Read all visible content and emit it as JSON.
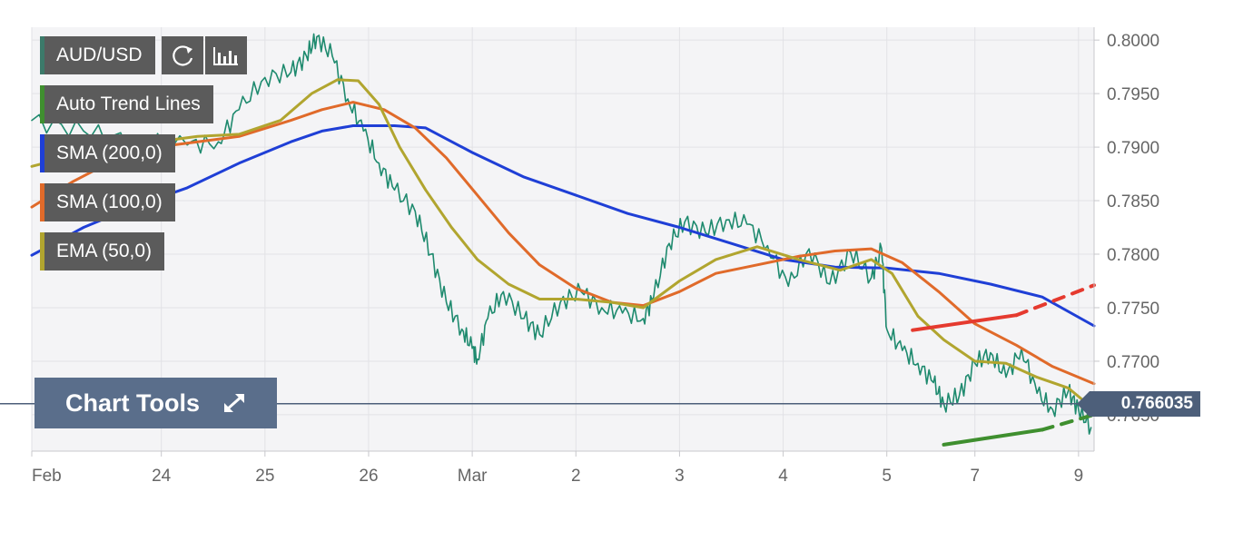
{
  "symbol": "AUD/USD",
  "legend": {
    "trend": {
      "label": "Auto Trend Lines",
      "color": "#3f8f2f"
    },
    "sma200": {
      "label": "SMA (200,0)",
      "color": "#1f3fd6"
    },
    "sma100": {
      "label": "SMA (100,0)",
      "color": "#e06a2a"
    },
    "ema50": {
      "label": "EMA (50,0)",
      "color": "#b1a52f"
    }
  },
  "chart_tools": {
    "label": "Chart Tools"
  },
  "current_price": {
    "label": "0.766035",
    "value": 0.766035
  },
  "icons": [
    "refresh-icon",
    "bar-chart-icon",
    "expand-icon"
  ],
  "chart_data": {
    "type": "line",
    "xlabels": [
      "Feb",
      "24",
      "25",
      "26",
      "Mar",
      "2",
      "3",
      "4",
      "5",
      "7",
      "9"
    ],
    "x_ticks": [
      0,
      1.25,
      2.25,
      3.25,
      4.25,
      5.25,
      6.25,
      7.25,
      8.25,
      9.1,
      10.1
    ],
    "xlim": [
      0,
      10.25
    ],
    "ylim": [
      0.7616,
      0.8012
    ],
    "yticks": [
      0.8,
      0.795,
      0.79,
      0.785,
      0.78,
      0.775,
      0.77,
      0.765
    ],
    "ytick_labels": [
      "0.8000",
      "0.7950",
      "0.7900",
      "0.7850",
      "0.7800",
      "0.7750",
      "0.7700",
      "0.7650"
    ],
    "grid": true,
    "series": [
      {
        "key": "price",
        "color": "#1e8a6e",
        "points": [
          [
            0,
            0.7925
          ],
          [
            0.5,
            0.7915
          ],
          [
            1,
            0.7905
          ],
          [
            1.5,
            0.7902
          ],
          [
            1.8,
            0.7905
          ],
          [
            2,
            0.7935
          ],
          [
            2.25,
            0.7965
          ],
          [
            2.5,
            0.797
          ],
          [
            2.65,
            0.7985
          ],
          [
            2.75,
            0.8003
          ],
          [
            2.9,
            0.7985
          ],
          [
            3.05,
            0.7945
          ],
          [
            3.2,
            0.7915
          ],
          [
            3.35,
            0.7885
          ],
          [
            3.5,
            0.786
          ],
          [
            3.7,
            0.784
          ],
          [
            3.85,
            0.78
          ],
          [
            4,
            0.7755
          ],
          [
            4.15,
            0.773
          ],
          [
            4.25,
            0.7712
          ],
          [
            4.3,
            0.7702
          ],
          [
            4.4,
            0.774
          ],
          [
            4.55,
            0.7765
          ],
          [
            4.75,
            0.774
          ],
          [
            4.9,
            0.7725
          ],
          [
            5.1,
            0.7755
          ],
          [
            5.3,
            0.7765
          ],
          [
            5.5,
            0.775
          ],
          [
            5.7,
            0.7745
          ],
          [
            5.9,
            0.774
          ],
          [
            6,
            0.776
          ],
          [
            6.15,
            0.781
          ],
          [
            6.3,
            0.783
          ],
          [
            6.5,
            0.782
          ],
          [
            6.7,
            0.7832
          ],
          [
            6.9,
            0.7828
          ],
          [
            7.1,
            0.7808
          ],
          [
            7.3,
            0.777
          ],
          [
            7.5,
            0.7805
          ],
          [
            7.7,
            0.7772
          ],
          [
            7.9,
            0.7802
          ],
          [
            8.1,
            0.7778
          ],
          [
            8.2,
            0.7805
          ],
          [
            8.25,
            0.773
          ],
          [
            8.4,
            0.771
          ],
          [
            8.55,
            0.7698
          ],
          [
            8.7,
            0.768
          ],
          [
            8.8,
            0.766
          ],
          [
            8.95,
            0.7668
          ],
          [
            9.1,
            0.7698
          ],
          [
            9.25,
            0.7708
          ],
          [
            9.4,
            0.7685
          ],
          [
            9.55,
            0.7712
          ],
          [
            9.7,
            0.767
          ],
          [
            9.85,
            0.7655
          ],
          [
            10,
            0.7672
          ],
          [
            10.1,
            0.7655
          ],
          [
            10.22,
            0.7638
          ]
        ]
      },
      {
        "key": "sma200",
        "color": "#1f3fd6",
        "points": [
          [
            0,
            0.7799
          ],
          [
            0.5,
            0.7825
          ],
          [
            1,
            0.7845
          ],
          [
            1.5,
            0.7862
          ],
          [
            2,
            0.7885
          ],
          [
            2.5,
            0.7905
          ],
          [
            2.8,
            0.7915
          ],
          [
            3.1,
            0.792
          ],
          [
            3.5,
            0.792
          ],
          [
            3.8,
            0.7918
          ],
          [
            4.25,
            0.7895
          ],
          [
            4.75,
            0.7872
          ],
          [
            5.25,
            0.7855
          ],
          [
            5.75,
            0.7838
          ],
          [
            6.25,
            0.7825
          ],
          [
            6.75,
            0.781
          ],
          [
            7.25,
            0.7795
          ],
          [
            7.75,
            0.7788
          ],
          [
            8.25,
            0.7787
          ],
          [
            8.75,
            0.7782
          ],
          [
            9.25,
            0.7772
          ],
          [
            9.75,
            0.776
          ],
          [
            10.25,
            0.7733
          ]
        ]
      },
      {
        "key": "sma100",
        "color": "#e06a2a",
        "points": [
          [
            0,
            0.7844
          ],
          [
            0.4,
            0.7868
          ],
          [
            0.8,
            0.7888
          ],
          [
            1.2,
            0.79
          ],
          [
            1.6,
            0.7905
          ],
          [
            2,
            0.791
          ],
          [
            2.5,
            0.7925
          ],
          [
            2.8,
            0.7935
          ],
          [
            3.1,
            0.7942
          ],
          [
            3.4,
            0.7935
          ],
          [
            3.7,
            0.7918
          ],
          [
            4,
            0.789
          ],
          [
            4.3,
            0.7855
          ],
          [
            4.6,
            0.782
          ],
          [
            4.9,
            0.779
          ],
          [
            5.25,
            0.7768
          ],
          [
            5.6,
            0.7755
          ],
          [
            5.9,
            0.7752
          ],
          [
            6.25,
            0.7765
          ],
          [
            6.6,
            0.7782
          ],
          [
            7,
            0.779
          ],
          [
            7.4,
            0.7798
          ],
          [
            7.75,
            0.7803
          ],
          [
            8.1,
            0.7805
          ],
          [
            8.4,
            0.7792
          ],
          [
            8.75,
            0.7765
          ],
          [
            9.1,
            0.7735
          ],
          [
            9.5,
            0.7715
          ],
          [
            9.85,
            0.7695
          ],
          [
            10.25,
            0.7679
          ]
        ]
      },
      {
        "key": "ema50",
        "color": "#b1a52f",
        "points": [
          [
            0,
            0.7882
          ],
          [
            0.4,
            0.7892
          ],
          [
            0.8,
            0.79
          ],
          [
            1.2,
            0.7905
          ],
          [
            1.6,
            0.791
          ],
          [
            2,
            0.7912
          ],
          [
            2.4,
            0.7925
          ],
          [
            2.7,
            0.795
          ],
          [
            2.95,
            0.7963
          ],
          [
            3.15,
            0.7962
          ],
          [
            3.35,
            0.794
          ],
          [
            3.55,
            0.79
          ],
          [
            3.8,
            0.786
          ],
          [
            4.05,
            0.7825
          ],
          [
            4.3,
            0.7795
          ],
          [
            4.6,
            0.7772
          ],
          [
            4.9,
            0.7758
          ],
          [
            5.25,
            0.7758
          ],
          [
            5.6,
            0.7755
          ],
          [
            5.9,
            0.775
          ],
          [
            6.25,
            0.7775
          ],
          [
            6.6,
            0.7795
          ],
          [
            7,
            0.7807
          ],
          [
            7.4,
            0.7795
          ],
          [
            7.8,
            0.7785
          ],
          [
            8.1,
            0.7795
          ],
          [
            8.3,
            0.7782
          ],
          [
            8.55,
            0.7742
          ],
          [
            8.8,
            0.772
          ],
          [
            9.1,
            0.77
          ],
          [
            9.4,
            0.7698
          ],
          [
            9.7,
            0.7685
          ],
          [
            10,
            0.7675
          ],
          [
            10.25,
            0.7655
          ]
        ]
      },
      {
        "key": "resistance",
        "color": "#e53a2f",
        "points": [
          [
            8.5,
            0.7729
          ],
          [
            9.5,
            0.7743
          ]
        ]
      },
      {
        "key": "resistance-projection",
        "color": "#e53a2f",
        "dashed": true,
        "points": [
          [
            9.5,
            0.7743
          ],
          [
            10.25,
            0.7771
          ]
        ]
      },
      {
        "key": "support",
        "color": "#3f8f2f",
        "points": [
          [
            8.8,
            0.7622
          ],
          [
            9.75,
            0.7636
          ]
        ]
      },
      {
        "key": "support-projection",
        "color": "#3f8f2f",
        "dashed": true,
        "points": [
          [
            9.75,
            0.7636
          ],
          [
            10.25,
            0.765
          ]
        ]
      }
    ]
  }
}
